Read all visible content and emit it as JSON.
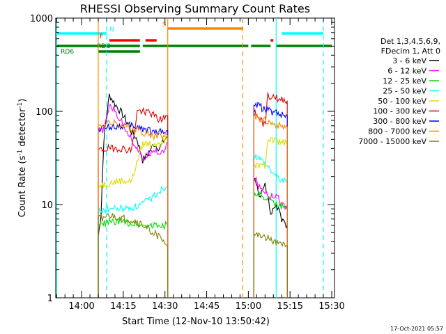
{
  "chart_data": {
    "type": "line",
    "title": "RHESSI Observing Summary Count Rates",
    "xlabel": "Start Time (12-Nov-10 13:50:42)",
    "ylabel_main": "Count Rate (s",
    "ylabel_sup1": "-1",
    "ylabel_mid": " detector",
    "ylabel_sup2": "-1",
    "ylabel_end": ")",
    "y_scale": "log",
    "ylim": [
      1,
      1000
    ],
    "xlim": [
      "13:50:42",
      "15:31:00"
    ],
    "grid": false,
    "x_ticks": [
      "14:00",
      "14:15",
      "14:30",
      "14:45",
      "15:00",
      "15:15",
      "15:30"
    ],
    "y_ticks": [
      "1",
      "10",
      "100",
      "1000"
    ],
    "legend": {
      "placement": "right",
      "header": [
        "Det 1,3,4,5,6,9,",
        "FDecim 1, Att 0"
      ],
      "entries": [
        {
          "label": "3 - 6 keV",
          "color": "#000000"
        },
        {
          "label": "6 - 12 keV",
          "color": "#ff00ff"
        },
        {
          "label": "12 - 25 keV",
          "color": "#00dd00"
        },
        {
          "label": "25 - 50 keV",
          "color": "#00ffff"
        },
        {
          "label": "50 - 100 keV",
          "color": "#dddd00"
        },
        {
          "label": "100 - 300 keV",
          "color": "#dd0000"
        },
        {
          "label": "300 - 800 keV",
          "color": "#0000ff"
        },
        {
          "label": "800 - 7000 keV",
          "color": "#ff8800"
        },
        {
          "label": "7000 - 15000 keV",
          "color": "#808000"
        }
      ]
    },
    "flag_bars": [
      {
        "label": "N",
        "color": "#00ffff",
        "segments": [
          [
            "13:50:42",
            "14:09"
          ],
          [
            "15:12",
            "15:27"
          ]
        ],
        "level": 1000
      },
      {
        "label": "S",
        "color": "#ff8800",
        "segments": [
          [
            "14:31",
            "14:58"
          ]
        ],
        "level": 1000
      },
      {
        "label": "F",
        "color": "#ff0000",
        "segments": [
          [
            "14:10",
            "14:21"
          ],
          [
            "14:23",
            "14:27"
          ],
          [
            "15:08",
            "15:09"
          ]
        ],
        "level": 1000
      },
      {
        "label": "RDO",
        "color": "#008000",
        "segments": [
          [
            "13:50:42",
            "14:21"
          ],
          [
            "14:22",
            "15:00"
          ],
          [
            "15:01",
            "15:08"
          ],
          [
            "15:10",
            "15:30"
          ]
        ],
        "level": 1000
      },
      {
        "label": "RD6",
        "color": "#008000",
        "segments": [
          [
            "14:06",
            "14:21"
          ]
        ],
        "level": 1000
      }
    ],
    "vertical_markers": [
      {
        "time": "13:51",
        "color": "#00ffff",
        "style": "solid"
      },
      {
        "time": "14:09",
        "color": "#00ffff",
        "style": "dashed"
      },
      {
        "time": "14:06",
        "color": "#ff8800",
        "style": "solid"
      },
      {
        "time": "14:31",
        "color": "#ff8800",
        "style": "solid"
      },
      {
        "time": "14:58",
        "color": "#ff8800",
        "style": "dashed"
      },
      {
        "time": "15:10",
        "color": "#00ffff",
        "style": "solid"
      },
      {
        "time": "15:27",
        "color": "#00ffff",
        "style": "dashed"
      }
    ],
    "series": [
      {
        "name": "3 - 6 keV",
        "color": "#000000",
        "segments": [
          {
            "x": [
              "14:06",
              "14:07",
              "14:08",
              "14:09",
              "14:10",
              "14:12",
              "14:14",
              "14:16",
              "14:18",
              "14:20",
              "14:22",
              "14:24",
              "14:26",
              "14:28",
              "14:30",
              "14:31"
            ],
            "y": [
              4.5,
              8,
              50,
              90,
              150,
              120,
              100,
              80,
              60,
              50,
              30,
              35,
              45,
              40,
              50,
              55
            ]
          },
          {
            "x": [
              "15:02",
              "15:04",
              "15:06",
              "15:08",
              "15:10",
              "15:12",
              "15:14"
            ],
            "y": [
              20,
              12,
              18,
              8,
              10,
              7,
              6
            ]
          }
        ]
      },
      {
        "name": "6 - 12 keV",
        "color": "#ff00ff",
        "segments": [
          {
            "x": [
              "14:06",
              "14:08",
              "14:09",
              "14:10",
              "14:12",
              "14:14",
              "14:16",
              "14:18",
              "14:20",
              "14:22",
              "14:24",
              "14:26",
              "14:28",
              "14:30",
              "14:31"
            ],
            "y": [
              60,
              65,
              80,
              120,
              100,
              80,
              65,
              50,
              40,
              30,
              35,
              40,
              35,
              40,
              45
            ]
          },
          {
            "x": [
              "15:02",
              "15:04",
              "15:06",
              "15:08",
              "15:10",
              "15:12",
              "15:14"
            ],
            "y": [
              20,
              15,
              14,
              12,
              13,
              10,
              9
            ]
          }
        ]
      },
      {
        "name": "12 - 25 keV",
        "color": "#00dd00",
        "segments": [
          {
            "x": [
              "14:06",
              "14:10",
              "14:16",
              "14:22",
              "14:28",
              "14:31"
            ],
            "y": [
              6,
              6.5,
              6.5,
              6,
              6,
              6
            ]
          },
          {
            "x": [
              "15:02",
              "15:06",
              "15:10",
              "15:14"
            ],
            "y": [
              13,
              12,
              10,
              9
            ]
          }
        ]
      },
      {
        "name": "25 - 50 keV",
        "color": "#00ffff",
        "segments": [
          {
            "x": [
              "14:06",
              "14:10",
              "14:16",
              "14:20",
              "14:24",
              "14:28",
              "14:31"
            ],
            "y": [
              8.5,
              9,
              9,
              9.5,
              11,
              14,
              16
            ]
          },
          {
            "x": [
              "15:02",
              "15:06",
              "15:10",
              "15:14"
            ],
            "y": [
              35,
              28,
              20,
              17
            ]
          }
        ]
      },
      {
        "name": "50 - 100 keV",
        "color": "#dddd00",
        "segments": [
          {
            "x": [
              "14:06",
              "14:10",
              "14:14",
              "14:18",
              "14:22",
              "14:26",
              "14:31"
            ],
            "y": [
              16,
              17,
              18,
              18,
              45,
              45,
              50
            ]
          },
          {
            "x": [
              "15:02",
              "15:06",
              "15:07",
              "15:10",
              "15:14"
            ],
            "y": [
              27,
              25,
              50,
              48,
              45
            ]
          }
        ]
      },
      {
        "name": "100 - 300 keV",
        "color": "#dd0000",
        "segments": [
          {
            "x": [
              "14:06",
              "14:10",
              "14:14",
              "14:18",
              "14:20",
              "14:24",
              "14:28",
              "14:31"
            ],
            "y": [
              38,
              40,
              40,
              38,
              100,
              100,
              80,
              90
            ]
          },
          {
            "x": [
              "15:02",
              "15:06",
              "15:07",
              "15:09",
              "15:14"
            ],
            "y": [
              100,
              70,
              150,
              140,
              130
            ]
          }
        ]
      },
      {
        "name": "300 - 800 keV",
        "color": "#0000ff",
        "segments": [
          {
            "x": [
              "14:06",
              "14:10",
              "14:14",
              "14:18",
              "14:22",
              "14:26",
              "14:31"
            ],
            "y": [
              65,
              68,
              70,
              70,
              65,
              60,
              62
            ]
          },
          {
            "x": [
              "15:02",
              "15:06",
              "15:10",
              "15:14"
            ],
            "y": [
              120,
              105,
              95,
              90
            ]
          }
        ]
      },
      {
        "name": "800 - 7000 keV",
        "color": "#ff8800",
        "segments": [
          {
            "x": [
              "14:06",
              "14:10",
              "14:14",
              "14:18",
              "14:22",
              "14:26",
              "14:31"
            ],
            "y": [
              70,
              75,
              72,
              65,
              60,
              55,
              55
            ]
          },
          {
            "x": [
              "15:02",
              "15:06",
              "15:10",
              "15:14"
            ],
            "y": [
              90,
              80,
              72,
              68
            ]
          }
        ]
      },
      {
        "name": "7000 - 15000 keV",
        "color": "#808000",
        "segments": [
          {
            "x": [
              "14:06",
              "14:10",
              "14:16",
              "14:20",
              "14:24",
              "14:28",
              "14:31"
            ],
            "y": [
              7,
              7.5,
              7,
              6.5,
              5.5,
              4.5,
              3.5
            ]
          },
          {
            "x": [
              "15:02",
              "15:06",
              "15:10",
              "15:14"
            ],
            "y": [
              5,
              4.5,
              4,
              3.5
            ]
          }
        ]
      }
    ]
  },
  "footer": {
    "timestamp": "17-Oct-2021 05:57"
  }
}
